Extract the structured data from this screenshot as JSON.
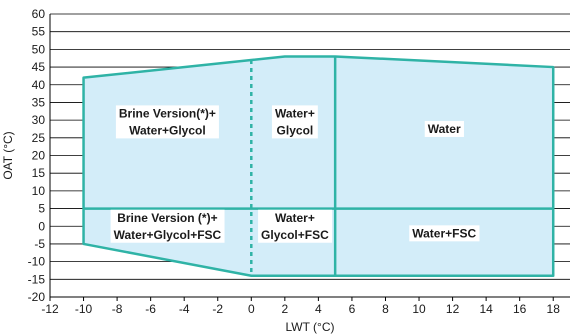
{
  "chart_data": {
    "type": "area",
    "title": "",
    "xlabel": "LWT (°C)",
    "ylabel": "OAT (°C)",
    "xlim": [
      -12,
      19
    ],
    "ylim": [
      -20,
      60
    ],
    "x_ticks": [
      -12,
      -10,
      -8,
      -6,
      -4,
      -2,
      0,
      2,
      4,
      6,
      8,
      10,
      12,
      14,
      16,
      18
    ],
    "y_ticks": [
      -20,
      -15,
      -10,
      -5,
      0,
      5,
      10,
      15,
      20,
      25,
      30,
      35,
      40,
      45,
      50,
      55,
      60
    ],
    "grid": "horizontal",
    "envelope": [
      [
        -10,
        42
      ],
      [
        0,
        47
      ],
      [
        2,
        48
      ],
      [
        5,
        48
      ],
      [
        18,
        45
      ],
      [
        18,
        -14
      ],
      [
        0,
        -14
      ],
      [
        -10,
        -5
      ]
    ],
    "boundaries": [
      {
        "name": "glycol-limit",
        "x": 0,
        "style": "dashed"
      },
      {
        "name": "water-limit",
        "x": 5,
        "style": "solid"
      },
      {
        "name": "fsc-limit",
        "y": 5,
        "style": "solid"
      }
    ],
    "regions": [
      {
        "name": "brine-glycol",
        "lines": [
          "Brine Version(*)+",
          "Water+Glycol"
        ],
        "x": -5,
        "y": 29.5
      },
      {
        "name": "water-glycol",
        "lines": [
          "Water+",
          "Glycol"
        ],
        "x": 2.6,
        "y": 29.5
      },
      {
        "name": "water",
        "lines": [
          "Water"
        ],
        "x": 11.5,
        "y": 27.5
      },
      {
        "name": "brine-glycol-fsc",
        "lines": [
          "Brine Version (*)+",
          "Water+Glycol+FSC"
        ],
        "x": -5,
        "y": 0
      },
      {
        "name": "glycol-fsc",
        "lines": [
          "Water+",
          "Glycol+FSC"
        ],
        "x": 2.6,
        "y": 0
      },
      {
        "name": "water-fsc",
        "lines": [
          "Water+FSC"
        ],
        "x": 11.5,
        "y": -2
      }
    ],
    "colors": {
      "fill": "#d3edf9",
      "line": "#2fb3a6",
      "grid": "#000000",
      "label_bg": "#ffffff"
    }
  }
}
